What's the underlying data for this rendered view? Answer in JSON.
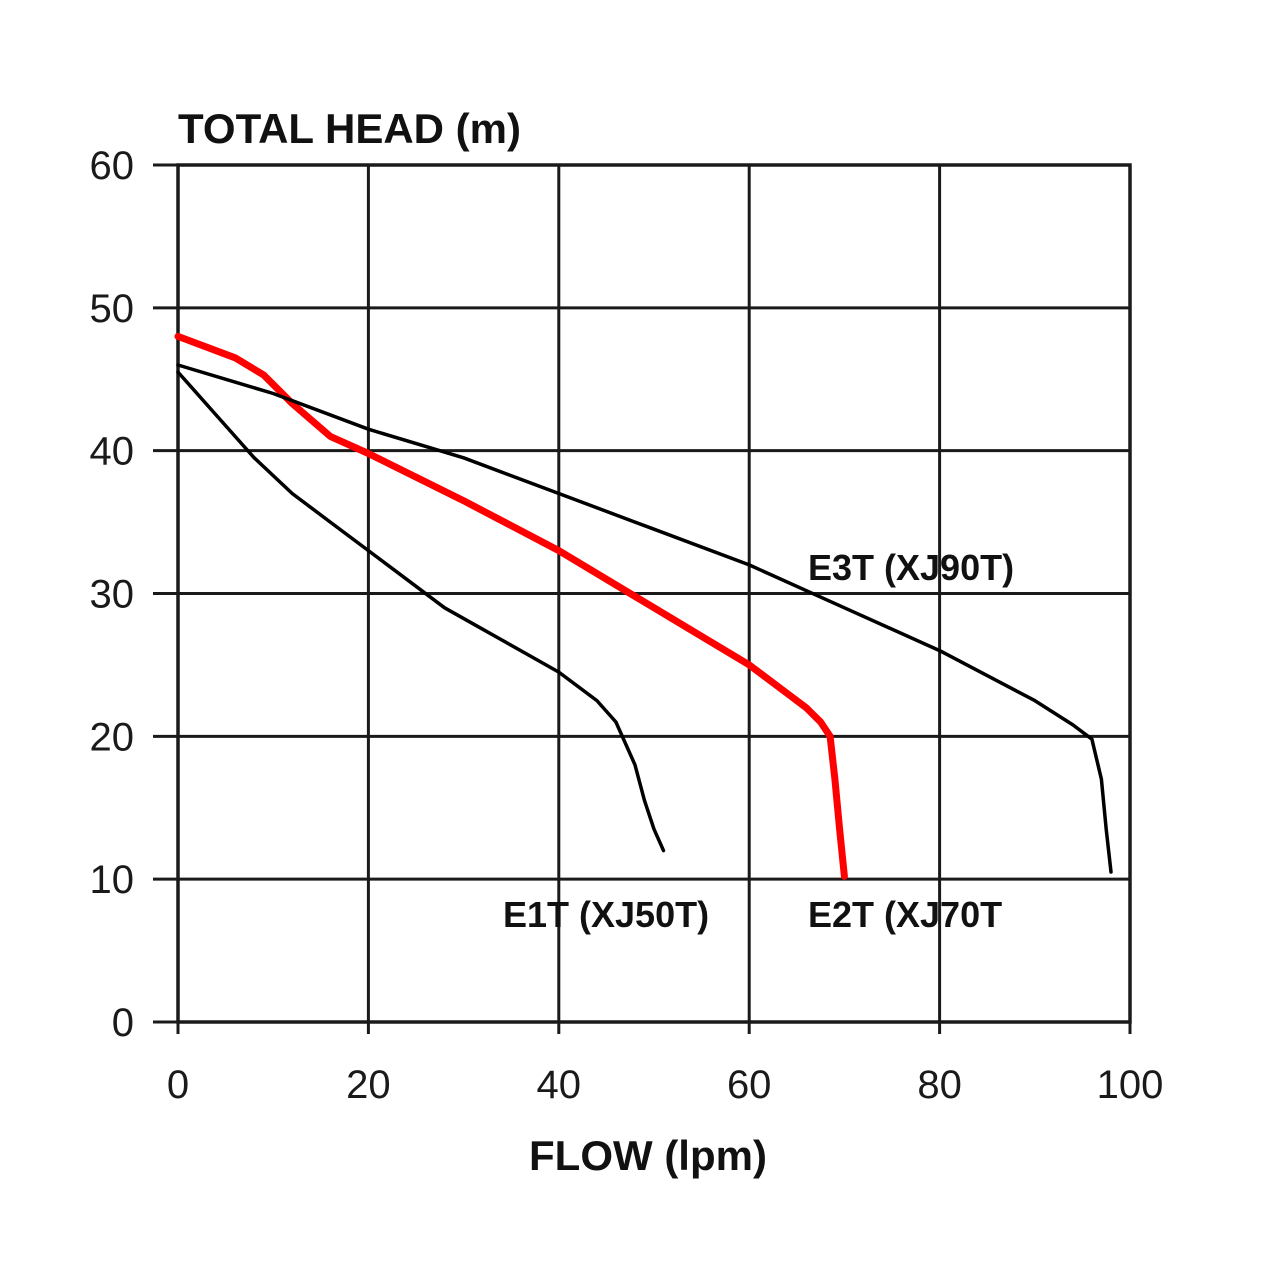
{
  "chart_data": {
    "type": "line",
    "ylabel": "TOTAL HEAD (m)",
    "xlabel": "FLOW (lpm)",
    "xlim": [
      0,
      100
    ],
    "ylim": [
      0,
      60
    ],
    "xticks": [
      0,
      20,
      40,
      60,
      80,
      100
    ],
    "yticks": [
      0,
      10,
      20,
      30,
      40,
      50,
      60
    ],
    "grid": true,
    "series": [
      {
        "name": "E1T (XJ50T)",
        "color": "#000000",
        "x": [
          0,
          4,
          8,
          12,
          16,
          20,
          24,
          28,
          32,
          36,
          40,
          44,
          46,
          48,
          49,
          50,
          51
        ],
        "y": [
          45.5,
          42.5,
          39.5,
          37,
          35,
          33,
          31,
          29,
          27.5,
          26,
          24.5,
          22.5,
          21,
          18,
          15.5,
          13.5,
          12
        ]
      },
      {
        "name": "E2T (XJ70T",
        "color": "#ff0000",
        "x": [
          0,
          6,
          9,
          12,
          16,
          20,
          30,
          40,
          50,
          60,
          64,
          66,
          67.5,
          68.5,
          69,
          69.5,
          70
        ],
        "y": [
          48,
          46.5,
          45.3,
          43.3,
          41,
          39.8,
          36.5,
          33,
          29,
          25,
          23,
          22,
          21,
          20,
          17,
          13.5,
          10.2
        ]
      },
      {
        "name": "E3T (XJ90T)",
        "color": "#000000",
        "x": [
          0,
          10,
          20,
          30,
          40,
          50,
          60,
          70,
          80,
          90,
          94,
          96,
          97,
          97.5,
          98
        ],
        "y": [
          46,
          44,
          41.5,
          39.5,
          37,
          34.5,
          32,
          29,
          26,
          22.5,
          20.8,
          19.8,
          17,
          13.5,
          10.5
        ]
      }
    ]
  }
}
